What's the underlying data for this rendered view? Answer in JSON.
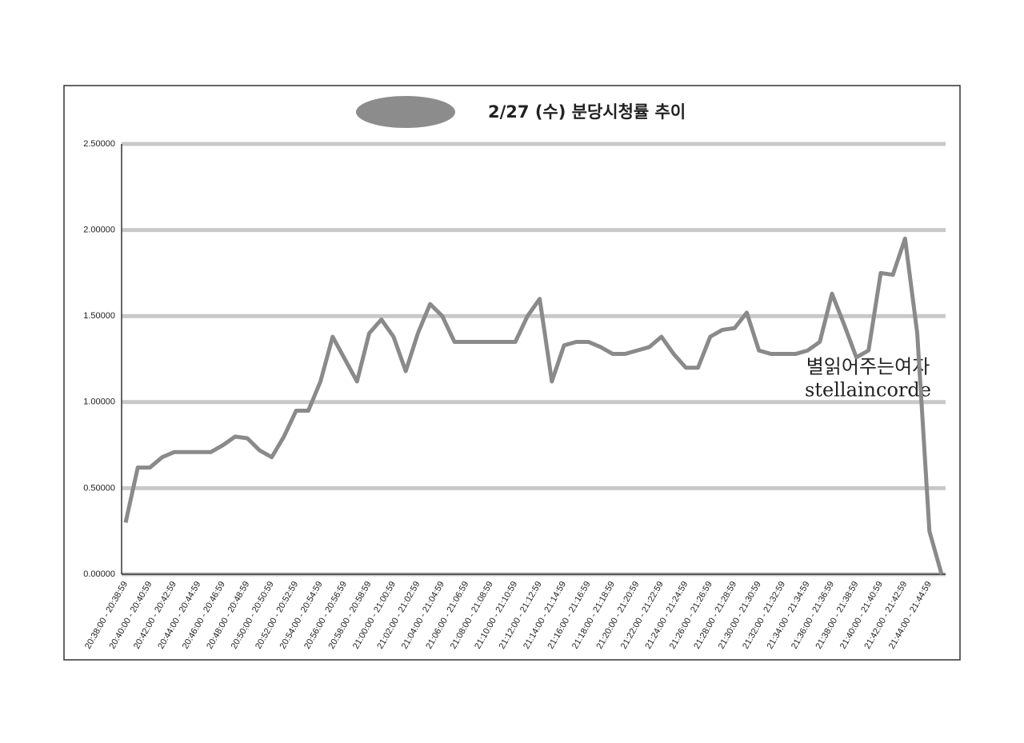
{
  "chart_data": {
    "type": "line",
    "title": "2/27 (수) 분당시청률 추이",
    "annotations": [
      "별읽어주는여자",
      "stellaincorde"
    ],
    "categories": [
      "20:38:00 - 20:38:59",
      null,
      "20:40:00 - 20:40:59",
      null,
      "20:42:00 - 20:42:59",
      null,
      "20:44:00 - 20:44:59",
      null,
      "20:46:00 - 20:46:59",
      null,
      "20:48:00 - 20:48:59",
      null,
      "20:50:00 - 20:50:59",
      null,
      "20:52:00 - 20:52:59",
      null,
      "20:54:00 - 20:54:59",
      null,
      "20:56:00 - 20:56:59",
      null,
      "20:58:00 - 20:58:59",
      null,
      "21:00:00 - 21:00:59",
      null,
      "21:02:00 - 21:02:59",
      null,
      "21:04:00 - 21:04:59",
      null,
      "21:06:00 - 21:06:59",
      null,
      "21:08:00 - 21:08:59",
      null,
      "21:10:00 - 21:10:59",
      null,
      "21:12:00 - 21:12:59",
      null,
      "21:14:00 - 21:14:59",
      null,
      "21:16:00 - 21:16:59",
      null,
      "21:18:00 - 21:18:59",
      null,
      "21:20:00 - 21:20:59",
      null,
      "21:22:00 - 21:22:59",
      null,
      "21:24:00 - 21:24:59",
      null,
      "21:26:00 - 21:26:59",
      null,
      "21:28:00 - 21:28:59",
      null,
      "21:30:00 - 21:30:59",
      null,
      "21:32:00 - 21:32:59",
      null,
      "21:34:00 - 21:34:59",
      null,
      "21:36:00 - 21:36:59",
      null,
      "21:38:00 - 21:38:59",
      null,
      "21:40:00 - 21:40:59",
      null,
      "21:42:00 - 21:42:59",
      null,
      "21:44:00 - 21:44:59",
      null
    ],
    "series": [
      {
        "name": "분당시청률",
        "color": "#8a8a8a",
        "values": [
          0.3,
          0.62,
          0.62,
          0.68,
          0.71,
          0.71,
          0.71,
          0.71,
          0.75,
          0.8,
          0.79,
          0.72,
          0.68,
          0.8,
          0.95,
          0.95,
          1.12,
          1.38,
          1.25,
          1.12,
          1.4,
          1.48,
          1.38,
          1.18,
          1.4,
          1.57,
          1.5,
          1.35,
          1.35,
          1.35,
          1.35,
          1.35,
          1.35,
          1.5,
          1.6,
          1.12,
          1.33,
          1.35,
          1.35,
          1.32,
          1.28,
          1.28,
          1.3,
          1.32,
          1.38,
          1.28,
          1.2,
          1.2,
          1.38,
          1.42,
          1.43,
          1.52,
          1.3,
          1.28,
          1.28,
          1.28,
          1.3,
          1.35,
          1.63,
          1.45,
          1.26,
          1.3,
          1.75,
          1.74,
          1.95,
          1.4,
          0.25,
          0
        ]
      }
    ],
    "ylim": [
      0,
      2.5
    ],
    "yticks": [
      {
        "value": 0,
        "label": "0.00000"
      },
      {
        "value": 0.5,
        "label": "0.50000"
      },
      {
        "value": 1,
        "label": "1.00000"
      },
      {
        "value": 1.5,
        "label": "1.50000"
      },
      {
        "value": 2,
        "label": "2.00000"
      },
      {
        "value": 2.5,
        "label": "2.50000"
      }
    ],
    "grid": true
  }
}
